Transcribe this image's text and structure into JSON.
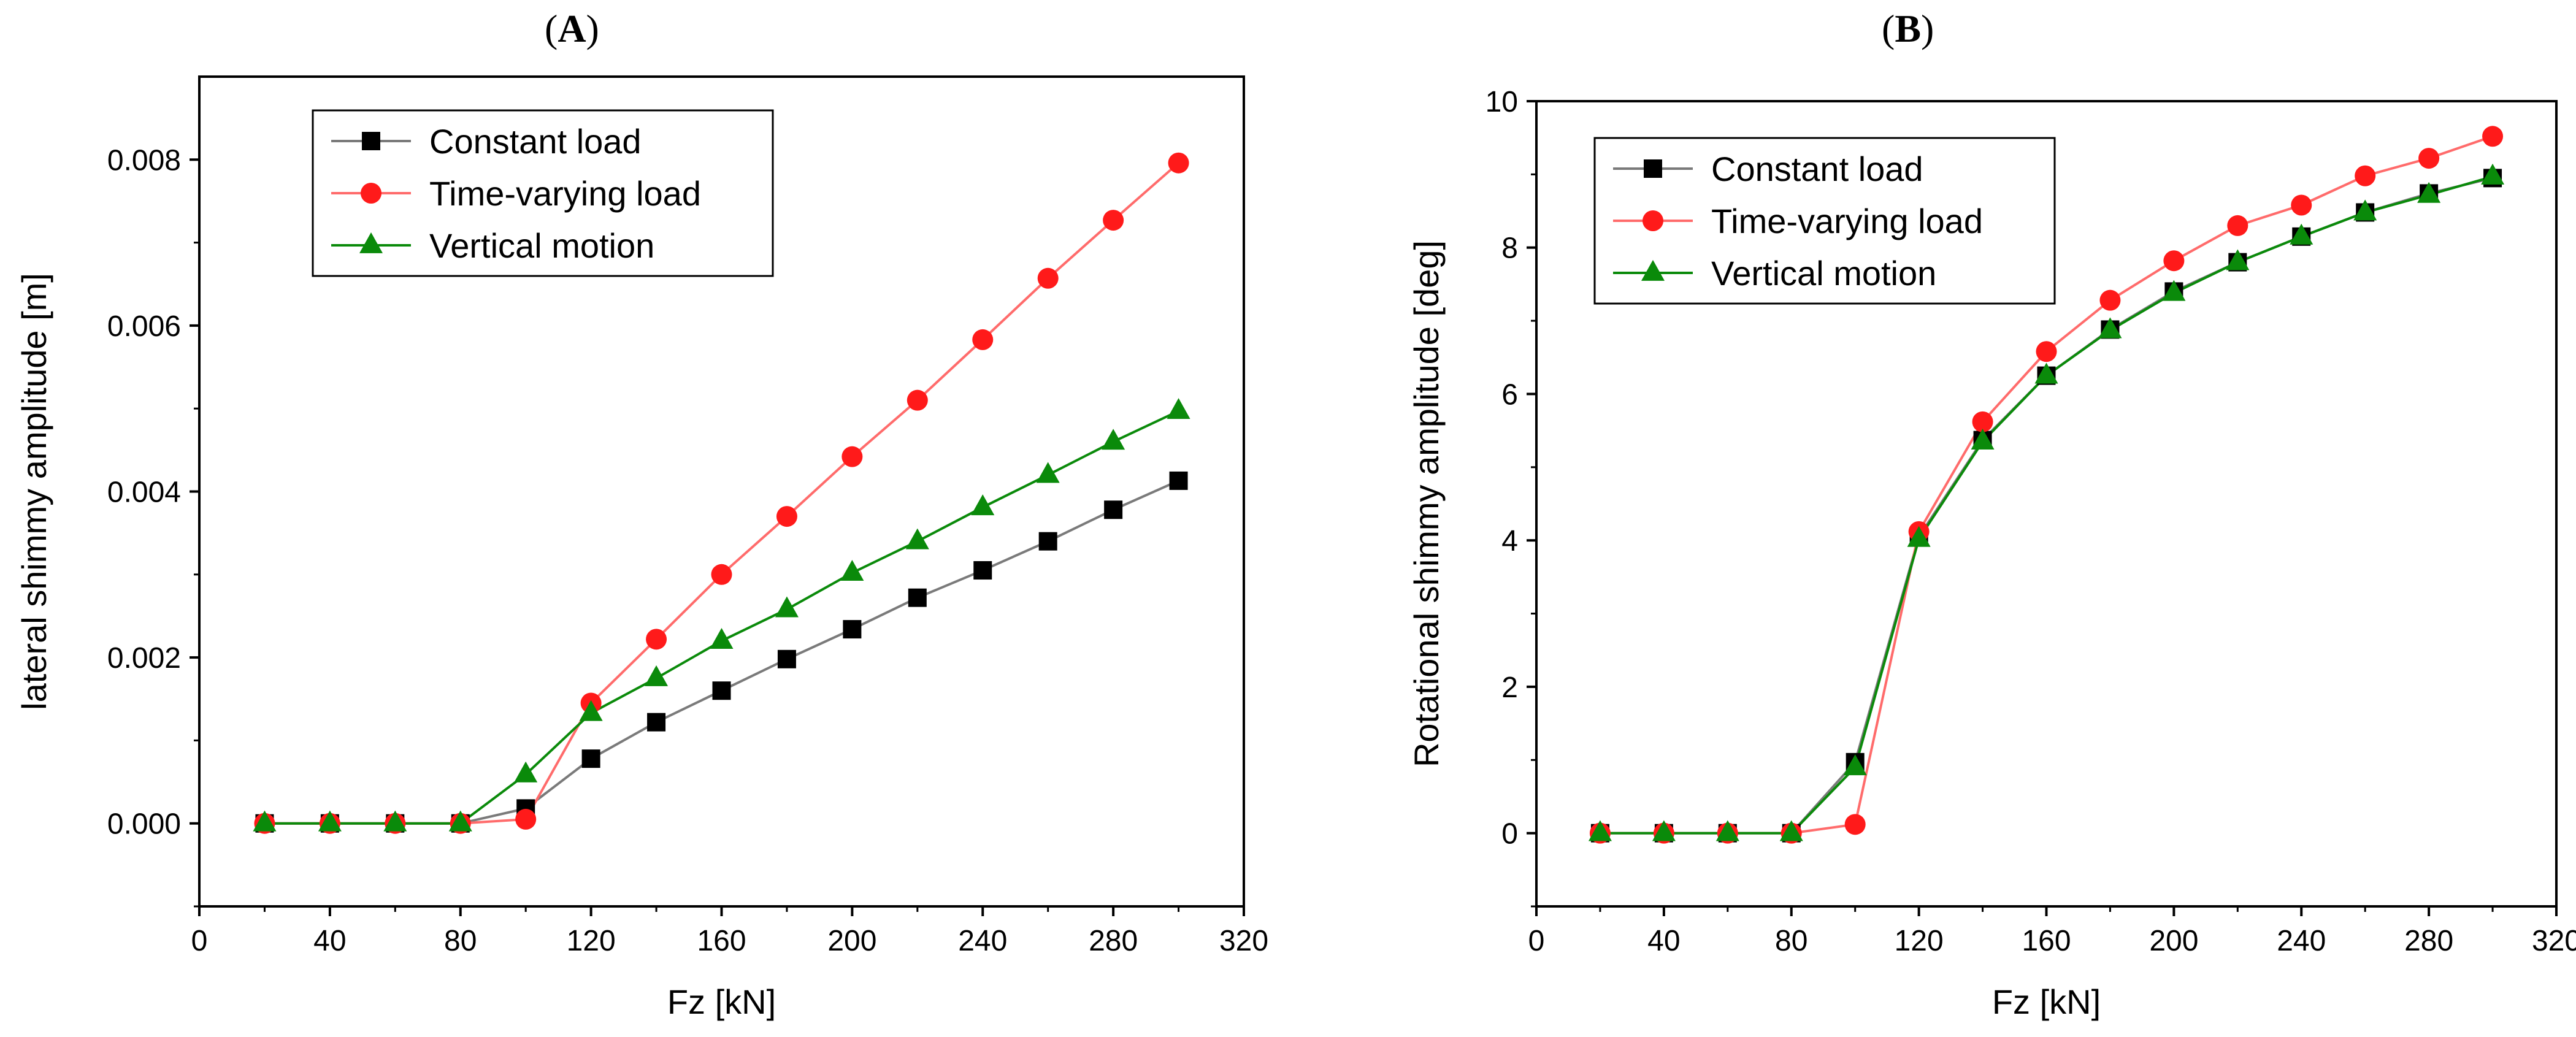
{
  "chart_data": [
    {
      "panel_label": "A",
      "type": "line",
      "title": "",
      "xlabel": "Fz  [kN]",
      "ylabel": "lateral shimmy amplitude [m]",
      "xlim": [
        0,
        320
      ],
      "ylim": [
        -0.001,
        0.009
      ],
      "xticks": [
        0,
        40,
        80,
        120,
        160,
        200,
        240,
        280,
        320
      ],
      "yticks": [
        0.0,
        0.002,
        0.004,
        0.006,
        0.008
      ],
      "ytick_labels": [
        "0.000",
        "0.002",
        "0.004",
        "0.006",
        "0.008"
      ],
      "legend_position": "top-left",
      "x": [
        20,
        40,
        60,
        80,
        100,
        120,
        140,
        160,
        180,
        200,
        220,
        240,
        260,
        280,
        300
      ],
      "series": [
        {
          "name": "Constant load",
          "color": "#000000",
          "line_color": "#7a7a7a",
          "marker": "square",
          "values": [
            0,
            0,
            0,
            0,
            0.00018,
            0.00078,
            0.00122,
            0.0016,
            0.00198,
            0.00234,
            0.00272,
            0.00305,
            0.0034,
            0.00378,
            0.00413
          ]
        },
        {
          "name": "Time-varying load",
          "color": "#ff1a1a",
          "line_color": "#ff6b6b",
          "marker": "circle",
          "values": [
            0,
            0,
            0,
            0,
            5e-05,
            0.00145,
            0.00222,
            0.003,
            0.0037,
            0.00442,
            0.0051,
            0.00583,
            0.00657,
            0.00727,
            0.00796
          ]
        },
        {
          "name": "Vertical motion",
          "color": "#0a8a0a",
          "line_color": "#0a8a0a",
          "marker": "triangle",
          "values": [
            0,
            0,
            0,
            0,
            0.00059,
            0.00133,
            0.00175,
            0.0022,
            0.00258,
            0.00302,
            0.0034,
            0.00381,
            0.0042,
            0.0046,
            0.00497
          ]
        }
      ]
    },
    {
      "panel_label": "B",
      "type": "line",
      "title": "",
      "xlabel": "Fz  [kN]",
      "ylabel": "Rotational shimmy amplitude [deg]",
      "xlim": [
        0,
        320
      ],
      "ylim": [
        -1,
        10
      ],
      "xticks": [
        0,
        40,
        80,
        120,
        160,
        200,
        240,
        280,
        320
      ],
      "yticks": [
        0,
        2,
        4,
        6,
        8,
        10
      ],
      "ytick_labels": [
        "0",
        "2",
        "4",
        "6",
        "8",
        "10"
      ],
      "legend_position": "top-left",
      "x": [
        20,
        40,
        60,
        80,
        100,
        120,
        140,
        160,
        180,
        200,
        220,
        240,
        260,
        280,
        300
      ],
      "series": [
        {
          "name": "Constant load",
          "color": "#000000",
          "line_color": "#7a7a7a",
          "marker": "square",
          "values": [
            0,
            0,
            0,
            0,
            0.97,
            4.05,
            5.37,
            6.25,
            6.88,
            7.4,
            7.8,
            8.15,
            8.48,
            8.74,
            8.95
          ]
        },
        {
          "name": "Time-varying load",
          "color": "#ff1a1a",
          "line_color": "#ff6b6b",
          "marker": "circle",
          "values": [
            0,
            0,
            0,
            0,
            0.12,
            4.12,
            5.62,
            6.58,
            7.28,
            7.82,
            8.3,
            8.58,
            8.98,
            9.22,
            9.52
          ]
        },
        {
          "name": "Vertical motion",
          "color": "#0a8a0a",
          "line_color": "#0a8a0a",
          "marker": "triangle",
          "values": [
            0,
            0,
            0,
            0,
            0.9,
            4.02,
            5.35,
            6.25,
            6.87,
            7.38,
            7.8,
            8.15,
            8.48,
            8.72,
            8.97
          ]
        }
      ]
    }
  ]
}
